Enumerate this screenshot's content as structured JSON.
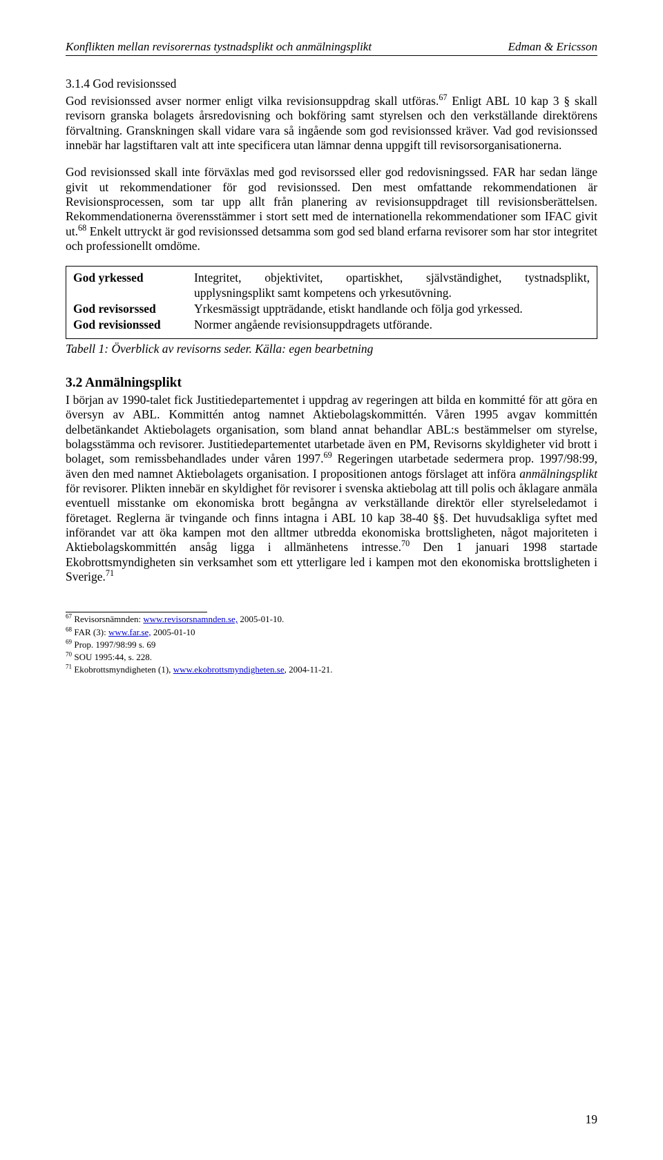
{
  "header": {
    "left": "Konflikten mellan revisorernas tystnadsplikt och anmälningsplikt",
    "right": "Edman & Ericsson"
  },
  "section1": {
    "heading": "3.1.4 God revisionssed",
    "para1_a": "God revisionssed avser normer enligt vilka revisionsuppdrag skall utföras.",
    "para1_b": " Enligt ABL 10 kap 3 § skall revisorn granska bolagets årsredovisning och bokföring samt styrelsen och den verkställande direktörens förvaltning. Granskningen skall vidare vara så ingående som god revisionssed kräver. Vad god revisionssed innebär har lagstiftaren valt att inte specificera utan lämnar denna uppgift till revisorsorganisationerna.",
    "para2_a": "God revisionssed skall inte förväxlas med god revisorssed eller god redovisningssed. FAR har sedan länge givit ut rekommendationer för god revisionssed. Den mest omfattande rekommendationen är Revisionsprocessen, som tar upp allt från planering av revisionsuppdraget till revisionsberättelsen. Rekommendationerna överensstämmer i stort sett med de internationella rekommendationer som IFAC givit ut.",
    "para2_b": " Enkelt uttryckt är god revisionssed detsamma som god sed bland erfarna revisorer som har stor integritet och professionellt omdöme."
  },
  "box": {
    "rows": [
      {
        "label": "God yrkessed",
        "desc": "Integritet, objektivitet, opartiskhet, självständighet, tystnadsplikt, upplysningsplikt samt kompetens och yrkesutövning."
      },
      {
        "label": "God revisorssed",
        "desc": "Yrkesmässigt uppträdande, etiskt handlande och följa god yrkessed."
      },
      {
        "label": "God revisionssed",
        "desc": "Normer angående revisionsuppdragets utförande."
      }
    ]
  },
  "tableCaption": "Tabell 1: Överblick av revisorns seder. Källa: egen bearbetning",
  "section2": {
    "heading": "3.2 Anmälningsplikt",
    "para_a": "I början av 1990-talet fick Justitiedepartementet i uppdrag av regeringen att bilda en kommitté för att göra en översyn av ABL. Kommittén antog namnet Aktiebolagskommittén. Våren 1995 avgav kommittén delbetänkandet Aktiebolagets organisation, som bland annat behandlar ABL:s bestämmelser om styrelse, bolagsstämma och revisorer. Justitiedepartementet utarbetade även en PM, Revisorns skyldigheter vid brott i bolaget, som remissbehandlades under våren 1997.",
    "para_b": " Regeringen utarbetade sedermera prop. 1997/98:99, även den med namnet Aktiebolagets organisation. I propositionen antogs förslaget att införa ",
    "para_italic": "anmälningsplikt",
    "para_c": " för revisorer. Plikten innebär en skyldighet för revisorer i svenska aktiebolag att till polis och åklagare anmäla eventuell misstanke om ekonomiska brott begångna av verkställande direktör eller styrelseledamot i företaget. Reglerna är tvingande och finns intagna i ABL 10 kap 38-40 §§. Det huvudsakliga syftet med införandet var att öka kampen mot den alltmer utbredda ekonomiska brottsligheten, något majoriteten i Aktiebolagskommittén ansåg ligga i allmänhetens intresse.",
    "para_d": " Den 1 januari 1998 startade Ekobrottsmyndigheten sin verksamhet som ett ytterligare led i kampen mot den ekonomiska brottsligheten i Sverige."
  },
  "footnotes": [
    {
      "num": "67",
      "pre": " Revisorsnämnden: ",
      "link": "www.revisorsnamnden.se,",
      "post": " 2005-01-10."
    },
    {
      "num": "68",
      "pre": " FAR (3): ",
      "link": "www.far.se,",
      "post": " 2005-01-10"
    },
    {
      "num": "69",
      "pre": " Prop. 1997/98:99 s. 69",
      "link": "",
      "post": ""
    },
    {
      "num": "70",
      "pre": " SOU 1995:44, s. 228.",
      "link": "",
      "post": ""
    },
    {
      "num": "71",
      "pre": " Ekobrottsmyndigheten (1), ",
      "link": "www.ekobrottsmyndigheten.se",
      "post": ", 2004-11-21."
    }
  ],
  "pageNumber": "19"
}
